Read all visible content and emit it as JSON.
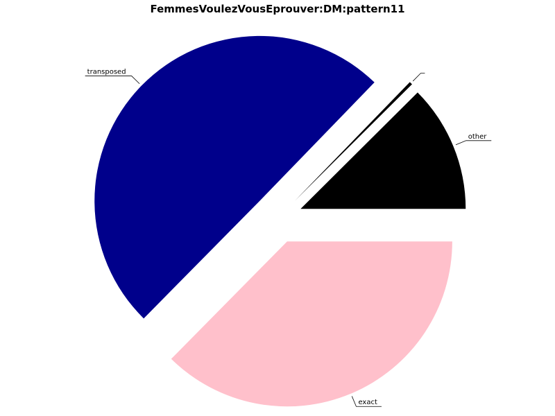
{
  "chart_data": {
    "type": "pie",
    "title": "FemmesVoulezVousEprouver:DM:pattern11",
    "slices": [
      {
        "label": "other",
        "value": 12.5,
        "color": "#000000"
      },
      {
        "label": "",
        "value": 0.3,
        "color": "#000000"
      },
      {
        "label": "transposed",
        "value": 50.0,
        "color": "#00008B"
      },
      {
        "label": "exact",
        "value": 37.5,
        "color": "#FFC0CB"
      }
    ]
  }
}
